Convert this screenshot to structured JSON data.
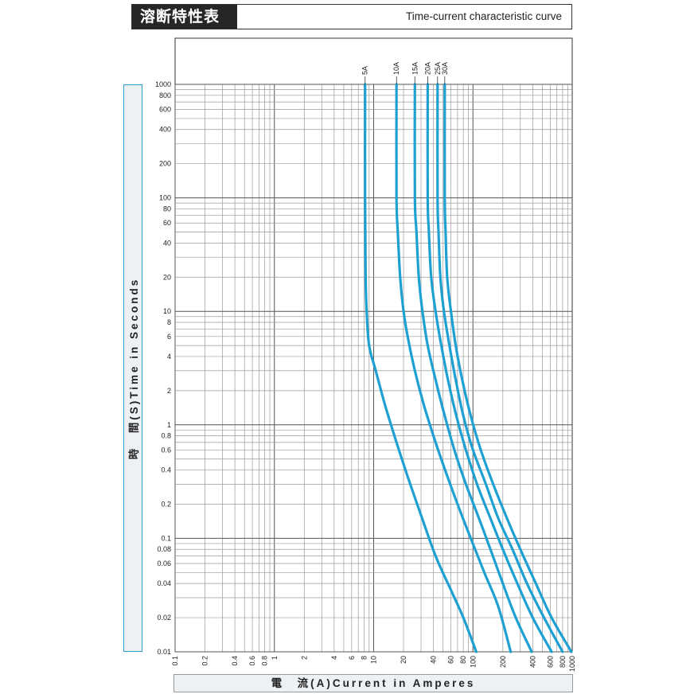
{
  "header": {
    "title_jp": "溶断特性表",
    "title_en": "Time-current characteristic curve"
  },
  "chart_data": {
    "type": "line",
    "title": "Time-current characteristic curve",
    "xlabel": "電　流(A)Current in Amperes",
    "ylabel": "時　間(S)Time in Seconds",
    "xscale": "log",
    "yscale": "log",
    "xlim": [
      0.1,
      1000
    ],
    "ylim": [
      0.01,
      1000
    ],
    "grid": true,
    "x_ticks": [
      "0.1",
      "0.2",
      "0.4",
      "0.6",
      "0.8",
      "1",
      "2",
      "4",
      "6",
      "8",
      "10",
      "20",
      "40",
      "60",
      "80",
      "100",
      "200",
      "400",
      "600",
      "800",
      "1000"
    ],
    "y_ticks": [
      "0.01",
      "0.02",
      "0.04",
      "0.06",
      "0.08",
      "0.1",
      "0.2",
      "0.4",
      "0.6",
      "0.8",
      "1",
      "2",
      "4",
      "6",
      "8",
      "10",
      "20",
      "40",
      "60",
      "80",
      "100",
      "200",
      "400",
      "600",
      "800",
      "1000"
    ],
    "line_color": "#1fa0d2",
    "series": [
      {
        "name": "5A",
        "points": [
          [
            8.2,
            1000
          ],
          [
            8.2,
            100
          ],
          [
            8.3,
            20
          ],
          [
            8.5,
            10
          ],
          [
            9,
            5
          ],
          [
            10.5,
            3
          ],
          [
            13,
            1.5
          ],
          [
            17,
            0.7
          ],
          [
            22,
            0.35
          ],
          [
            30,
            0.16
          ],
          [
            42,
            0.07
          ],
          [
            60,
            0.035
          ],
          [
            80,
            0.02
          ],
          [
            108,
            0.01
          ]
        ]
      },
      {
        "name": "10A",
        "points": [
          [
            17,
            1000
          ],
          [
            17,
            100
          ],
          [
            17.5,
            50
          ],
          [
            18.5,
            20
          ],
          [
            20,
            10
          ],
          [
            22,
            6
          ],
          [
            26,
            3
          ],
          [
            32,
            1.5
          ],
          [
            40,
            0.8
          ],
          [
            50,
            0.45
          ],
          [
            70,
            0.2
          ],
          [
            95,
            0.1
          ],
          [
            130,
            0.05
          ],
          [
            180,
            0.025
          ],
          [
            240,
            0.01
          ]
        ]
      },
      {
        "name": "15A",
        "points": [
          [
            26,
            1000
          ],
          [
            26,
            100
          ],
          [
            27,
            50
          ],
          [
            28.5,
            20
          ],
          [
            31,
            10
          ],
          [
            35,
            5
          ],
          [
            42,
            2.5
          ],
          [
            52,
            1.2
          ],
          [
            65,
            0.6
          ],
          [
            85,
            0.3
          ],
          [
            115,
            0.15
          ],
          [
            150,
            0.08
          ],
          [
            200,
            0.04
          ],
          [
            270,
            0.02
          ],
          [
            390,
            0.01
          ]
        ]
      },
      {
        "name": "20A",
        "points": [
          [
            35,
            1000
          ],
          [
            35,
            100
          ],
          [
            36,
            50
          ],
          [
            38,
            20
          ],
          [
            42,
            10
          ],
          [
            48,
            5
          ],
          [
            56,
            2.5
          ],
          [
            68,
            1.2
          ],
          [
            85,
            0.6
          ],
          [
            110,
            0.3
          ],
          [
            150,
            0.15
          ],
          [
            200,
            0.08
          ],
          [
            280,
            0.04
          ],
          [
            400,
            0.02
          ],
          [
            620,
            0.01
          ]
        ]
      },
      {
        "name": "25A",
        "points": [
          [
            44,
            1000
          ],
          [
            44,
            100
          ],
          [
            45,
            50
          ],
          [
            47,
            20
          ],
          [
            51,
            10
          ],
          [
            58,
            5
          ],
          [
            67,
            2.5
          ],
          [
            80,
            1.2
          ],
          [
            100,
            0.6
          ],
          [
            135,
            0.3
          ],
          [
            180,
            0.15
          ],
          [
            250,
            0.08
          ],
          [
            350,
            0.04
          ],
          [
            520,
            0.02
          ],
          [
            800,
            0.01
          ]
        ]
      },
      {
        "name": "30A",
        "points": [
          [
            52,
            1000
          ],
          [
            52,
            100
          ],
          [
            53,
            50
          ],
          [
            55,
            20
          ],
          [
            60,
            10
          ],
          [
            67,
            5
          ],
          [
            78,
            2.5
          ],
          [
            95,
            1.2
          ],
          [
            120,
            0.6
          ],
          [
            160,
            0.3
          ],
          [
            220,
            0.15
          ],
          [
            300,
            0.08
          ],
          [
            430,
            0.04
          ],
          [
            620,
            0.02
          ],
          [
            980,
            0.01
          ]
        ]
      }
    ]
  }
}
